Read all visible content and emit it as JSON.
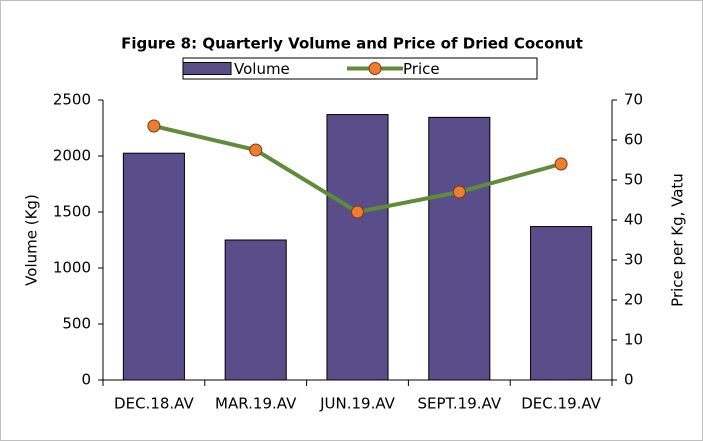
{
  "chart_data": {
    "type": "bar",
    "title": "Figure 8: Quarterly Volume and Price of Dried Coconut",
    "categories": [
      "DEC.18.AV",
      "MAR.19.AV",
      "JUN.19.AV",
      "SEPT.19.AV",
      "DEC.19.AV"
    ],
    "series": [
      {
        "name": "Volume",
        "type": "bar",
        "color": "#5a4e8a",
        "values": [
          2025,
          1250,
          2370,
          2345,
          1370
        ]
      },
      {
        "name": "Price",
        "type": "line",
        "axis": "y2",
        "color": "#5f8b3a",
        "marker_color": "#ed7d31",
        "values": [
          63.5,
          57.5,
          42,
          47,
          54
        ]
      }
    ],
    "ylabel": "Volume (Kg)",
    "y2label": "Price per Kg, Vatu",
    "ylim": [
      0,
      2500
    ],
    "yticks": [
      0,
      500,
      1000,
      1500,
      2000,
      2500
    ],
    "y2lim": [
      0,
      70
    ],
    "y2ticks": [
      0,
      10,
      20,
      30,
      40,
      50,
      60,
      70
    ],
    "legend": "top",
    "grid": false
  }
}
